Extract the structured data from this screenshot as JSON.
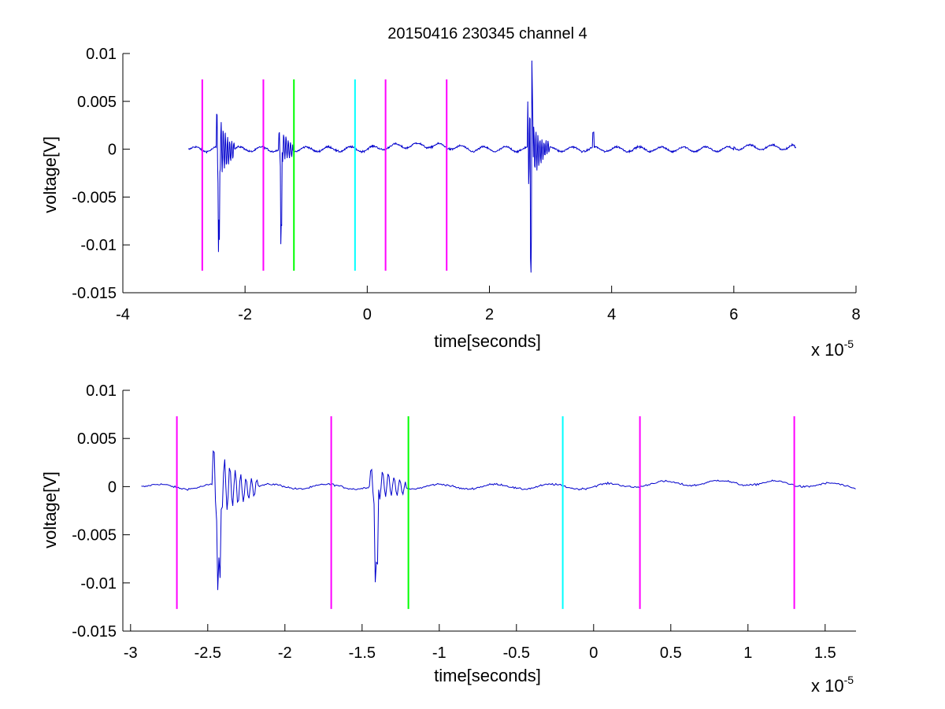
{
  "title": "20150416 230345 channel 4",
  "colors": {
    "trace": "#0000cc",
    "magenta": "#ff00ff",
    "green": "#00ff00",
    "cyan": "#00ffff",
    "axis": "#000000"
  },
  "chart_data": [
    {
      "type": "line",
      "panel": "top",
      "xlabel": "time[seconds]",
      "ylabel": "voltage[V]",
      "x_multiplier_label": "x 10",
      "x_multiplier_exponent": "-5",
      "xlim": [
        -4,
        8
      ],
      "ylim": [
        -0.015,
        0.01
      ],
      "x_ticks": [
        -4,
        -2,
        0,
        2,
        4,
        6,
        8
      ],
      "x_tick_labels": [
        "-4",
        "-2",
        "0",
        "2",
        "4",
        "6",
        "8"
      ],
      "y_ticks": [
        -0.015,
        -0.01,
        -0.005,
        0,
        0.005,
        0.01
      ],
      "y_tick_labels": [
        "-0.015",
        "-0.01",
        "-0.005",
        "0",
        "0.005",
        "0.01"
      ],
      "trace_range": [
        -2.93,
        7.02
      ],
      "markers": [
        {
          "x": -2.7,
          "color": "magenta",
          "y_range": [
            -0.0127,
            0.0073
          ]
        },
        {
          "x": -1.7,
          "color": "magenta",
          "y_range": [
            -0.0127,
            0.0073
          ]
        },
        {
          "x": -1.2,
          "color": "green",
          "y_range": [
            -0.0127,
            0.0073
          ]
        },
        {
          "x": -0.2,
          "color": "cyan",
          "y_range": [
            -0.0127,
            0.0073
          ]
        },
        {
          "x": 0.3,
          "color": "magenta",
          "y_range": [
            -0.0127,
            0.0073
          ]
        },
        {
          "x": 1.3,
          "color": "magenta",
          "y_range": [
            -0.0127,
            0.0073
          ]
        }
      ]
    },
    {
      "type": "line",
      "panel": "bottom",
      "xlabel": "time[seconds]",
      "ylabel": "voltage[V]",
      "x_multiplier_label": "x 10",
      "x_multiplier_exponent": "-5",
      "xlim": [
        -3.05,
        1.7
      ],
      "ylim": [
        -0.015,
        0.01
      ],
      "x_ticks": [
        -3,
        -2.5,
        -2,
        -1.5,
        -1,
        -0.5,
        0,
        0.5,
        1,
        1.5
      ],
      "x_tick_labels": [
        "-3",
        "-2.5",
        "-2",
        "-1.5",
        "-1",
        "-0.5",
        "0",
        "0.5",
        "1",
        "1.5"
      ],
      "y_ticks": [
        -0.015,
        -0.01,
        -0.005,
        0,
        0.005,
        0.01
      ],
      "y_tick_labels": [
        "-0.015",
        "-0.01",
        "-0.005",
        "0",
        "0.005",
        "0.01"
      ],
      "trace_range": [
        -2.93,
        1.7
      ],
      "markers": [
        {
          "x": -2.7,
          "color": "magenta",
          "y_range": [
            -0.0127,
            0.0073
          ]
        },
        {
          "x": -1.7,
          "color": "magenta",
          "y_range": [
            -0.0127,
            0.0073
          ]
        },
        {
          "x": -1.2,
          "color": "green",
          "y_range": [
            -0.0127,
            0.0073
          ]
        },
        {
          "x": -0.2,
          "color": "cyan",
          "y_range": [
            -0.0127,
            0.0073
          ]
        },
        {
          "x": 0.3,
          "color": "magenta",
          "y_range": [
            -0.0127,
            0.0073
          ]
        },
        {
          "x": 1.3,
          "color": "magenta",
          "y_range": [
            -0.0127,
            0.0073
          ]
        }
      ]
    }
  ]
}
